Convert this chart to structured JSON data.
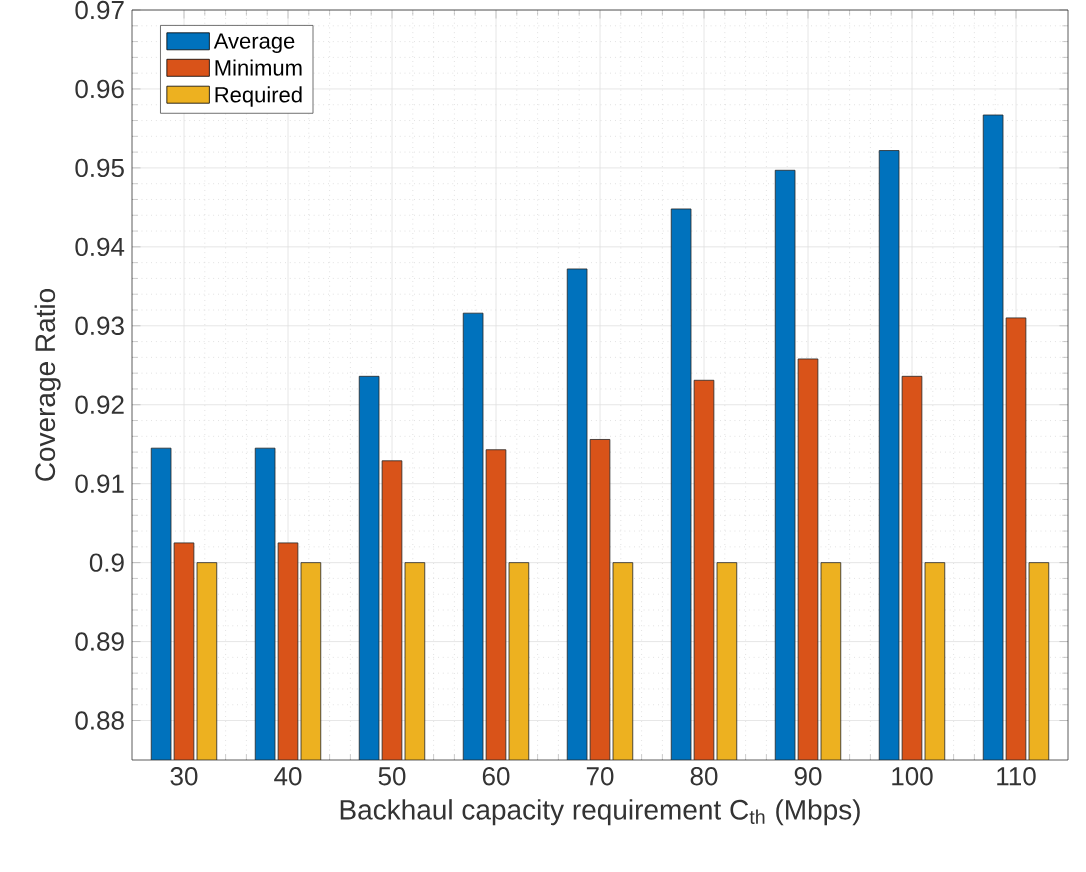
{
  "chart_data": {
    "type": "bar",
    "xlabel": "Backhaul capacity requirement C$_{th}$ (Mbps)",
    "ylabel": "Coverage Ratio",
    "categories": [
      "30",
      "40",
      "50",
      "60",
      "70",
      "80",
      "90",
      "100",
      "110"
    ],
    "series": [
      {
        "name": "Average",
        "color": "#0072bd",
        "values": [
          0.9145,
          0.9145,
          0.9236,
          0.9316,
          0.9372,
          0.9448,
          0.9497,
          0.9522,
          0.9567
        ]
      },
      {
        "name": "Minimum",
        "color": "#d95319",
        "values": [
          0.9025,
          0.9025,
          0.9129,
          0.9143,
          0.9156,
          0.9231,
          0.9258,
          0.9236,
          0.931
        ]
      },
      {
        "name": "Required",
        "color": "#edb120",
        "values": [
          0.9,
          0.9,
          0.9,
          0.9,
          0.9,
          0.9,
          0.9,
          0.9,
          0.9
        ]
      }
    ],
    "ylim": [
      0.875,
      0.97
    ],
    "yticks": [
      0.88,
      0.89,
      0.9,
      0.91,
      0.92,
      0.93,
      0.94,
      0.95,
      0.96,
      0.97
    ],
    "grid": true,
    "legend": "top left"
  }
}
